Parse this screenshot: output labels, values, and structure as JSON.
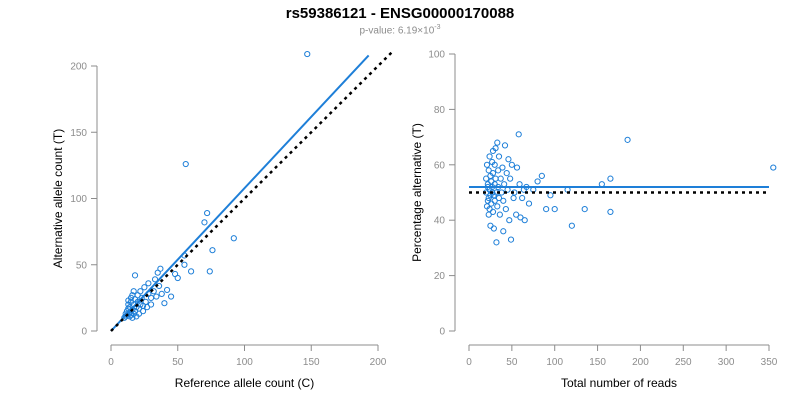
{
  "header": {
    "title": "rs59386121 - ENSG00000170088",
    "pvalue_prefix": "p-value: 6.19×10",
    "pvalue_exp": "-3"
  },
  "colors": {
    "points": "#1e7fd8",
    "reference_line": "#000000",
    "axes": "#8c8c8c"
  },
  "chart_data": [
    {
      "type": "scatter",
      "xlabel": "Reference allele count (C)",
      "ylabel": "Alternative allele count (T)",
      "xlim": [
        0,
        200
      ],
      "ylim": [
        0,
        200
      ],
      "xticks": [
        0,
        50,
        100,
        150,
        200
      ],
      "yticks": [
        0,
        50,
        100,
        150,
        200
      ],
      "fit_line": {
        "x": [
          0,
          193
        ],
        "y": [
          0,
          208
        ]
      },
      "reference_line": {
        "x": [
          0,
          210
        ],
        "y": [
          0,
          210
        ]
      },
      "points": [
        [
          10,
          10
        ],
        [
          11,
          11
        ],
        [
          11,
          13
        ],
        [
          12,
          15
        ],
        [
          12,
          12
        ],
        [
          13,
          17
        ],
        [
          13,
          20
        ],
        [
          13,
          23
        ],
        [
          14,
          11
        ],
        [
          14,
          14
        ],
        [
          14,
          18
        ],
        [
          15,
          22
        ],
        [
          15,
          25
        ],
        [
          15,
          12
        ],
        [
          16,
          16
        ],
        [
          16,
          27
        ],
        [
          16,
          10
        ],
        [
          17,
          13
        ],
        [
          17,
          20
        ],
        [
          17,
          30
        ],
        [
          18,
          15
        ],
        [
          18,
          24
        ],
        [
          18,
          42
        ],
        [
          19,
          11
        ],
        [
          19,
          18
        ],
        [
          20,
          22
        ],
        [
          20,
          27
        ],
        [
          21,
          13
        ],
        [
          21,
          17
        ],
        [
          22,
          20
        ],
        [
          22,
          30
        ],
        [
          23,
          25
        ],
        [
          24,
          15
        ],
        [
          24,
          19
        ],
        [
          25,
          33
        ],
        [
          26,
          22
        ],
        [
          27,
          18
        ],
        [
          28,
          28
        ],
        [
          28,
          36
        ],
        [
          30,
          25
        ],
        [
          30,
          20
        ],
        [
          32,
          30
        ],
        [
          33,
          39
        ],
        [
          34,
          26
        ],
        [
          35,
          44
        ],
        [
          36,
          34
        ],
        [
          37,
          47
        ],
        [
          38,
          28
        ],
        [
          40,
          21
        ],
        [
          42,
          31
        ],
        [
          45,
          26
        ],
        [
          48,
          43
        ],
        [
          50,
          40
        ],
        [
          55,
          50
        ],
        [
          55,
          57
        ],
        [
          56,
          126
        ],
        [
          60,
          45
        ],
        [
          70,
          82
        ],
        [
          72,
          89
        ],
        [
          74,
          45
        ],
        [
          76,
          61
        ],
        [
          92,
          70
        ],
        [
          147,
          209
        ]
      ]
    },
    {
      "type": "scatter",
      "xlabel": "Total number of reads",
      "ylabel": "Percentage alternative (T)",
      "xlim": [
        0,
        350
      ],
      "ylim": [
        0,
        100
      ],
      "xticks": [
        0,
        50,
        100,
        150,
        200,
        250,
        300,
        350
      ],
      "yticks": [
        0,
        20,
        40,
        60,
        80,
        100
      ],
      "fit_line": {
        "x": [
          0,
          350
        ],
        "y": [
          52,
          52
        ]
      },
      "reference_line": {
        "x": [
          0,
          350
        ],
        "y": [
          50,
          50
        ]
      },
      "points": [
        [
          20,
          50
        ],
        [
          20,
          55
        ],
        [
          21,
          45
        ],
        [
          21,
          60
        ],
        [
          22,
          52
        ],
        [
          22,
          47
        ],
        [
          22,
          53
        ],
        [
          23,
          42
        ],
        [
          23,
          58
        ],
        [
          23,
          48
        ],
        [
          24,
          51
        ],
        [
          24,
          63
        ],
        [
          24,
          44
        ],
        [
          25,
          49
        ],
        [
          25,
          56
        ],
        [
          25,
          38
        ],
        [
          26,
          54
        ],
        [
          26,
          46
        ],
        [
          27,
          61
        ],
        [
          27,
          52
        ],
        [
          27,
          50
        ],
        [
          28,
          65
        ],
        [
          28,
          43
        ],
        [
          28,
          57
        ],
        [
          29,
          49
        ],
        [
          29,
          37
        ],
        [
          30,
          60
        ],
        [
          30,
          53
        ],
        [
          30,
          47
        ],
        [
          31,
          66
        ],
        [
          31,
          55
        ],
        [
          32,
          32
        ],
        [
          32,
          50
        ],
        [
          33,
          68
        ],
        [
          33,
          45
        ],
        [
          34,
          58
        ],
        [
          34,
          52
        ],
        [
          35,
          48
        ],
        [
          35,
          63
        ],
        [
          36,
          42
        ],
        [
          37,
          55
        ],
        [
          38,
          50
        ],
        [
          39,
          59
        ],
        [
          40,
          47
        ],
        [
          40,
          36
        ],
        [
          41,
          53
        ],
        [
          42,
          67
        ],
        [
          43,
          44
        ],
        [
          44,
          57
        ],
        [
          45,
          51
        ],
        [
          46,
          62
        ],
        [
          47,
          40
        ],
        [
          48,
          55
        ],
        [
          49,
          33
        ],
        [
          50,
          60
        ],
        [
          52,
          48
        ],
        [
          53,
          50
        ],
        [
          55,
          42
        ],
        [
          56,
          59
        ],
        [
          58,
          71
        ],
        [
          59,
          53
        ],
        [
          60,
          41
        ],
        [
          62,
          48
        ],
        [
          64,
          51
        ],
        [
          65,
          40
        ],
        [
          67,
          52
        ],
        [
          70,
          46
        ],
        [
          75,
          51
        ],
        [
          80,
          54
        ],
        [
          85,
          56
        ],
        [
          90,
          44
        ],
        [
          95,
          49
        ],
        [
          100,
          44
        ],
        [
          115,
          51
        ],
        [
          120,
          38
        ],
        [
          135,
          44
        ],
        [
          155,
          53
        ],
        [
          165,
          43
        ],
        [
          165,
          55
        ],
        [
          185,
          69
        ],
        [
          355,
          59
        ]
      ]
    }
  ]
}
